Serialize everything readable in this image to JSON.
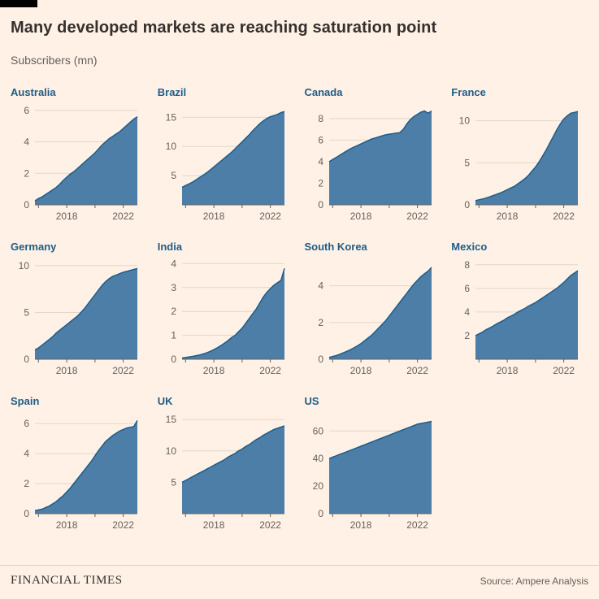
{
  "header": {
    "title": "Many developed markets are reaching saturation point",
    "subtitle": "Subscribers (mn)"
  },
  "footer": {
    "brand": "FINANCIAL TIMES",
    "source": "Source: Ampere Analysis"
  },
  "colors": {
    "background": "#FFF1E5",
    "area_fill": "#4C7EA8",
    "area_line": "#1F5C87",
    "chart_title": "#1F5C87",
    "axis_text": "#66605C",
    "gridline": "#E5D6C6",
    "baseline": "#66605C",
    "heading_text": "#33302E"
  },
  "chart_data": {
    "type": "area",
    "title": "Many developed markets are reaching saturation point",
    "units": "Subscribers (mn)",
    "layout": {
      "columns": 4,
      "rows": 3,
      "grid": "small-multiples",
      "legend": "none",
      "gridlines": "horizontal"
    },
    "x": [
      2015.75,
      2016,
      2016.25,
      2016.5,
      2016.75,
      2017,
      2017.25,
      2017.5,
      2017.75,
      2018,
      2018.25,
      2018.5,
      2018.75,
      2019,
      2019.25,
      2019.5,
      2019.75,
      2020,
      2020.25,
      2020.5,
      2020.75,
      2021,
      2021.25,
      2021.5,
      2021.75,
      2022,
      2022.25,
      2022.5,
      2022.75,
      2023
    ],
    "x_ticks": [
      2016,
      2018,
      2020,
      2022
    ],
    "x_tick_labels": [
      "2018",
      "2022"
    ],
    "x_tick_label_positions": [
      2018,
      2022
    ],
    "charts": [
      {
        "title": "Australia",
        "y_ticks": [
          0,
          2,
          4,
          6
        ],
        "y_max": 6.3,
        "values": [
          0.25,
          0.4,
          0.5,
          0.65,
          0.8,
          0.95,
          1.1,
          1.3,
          1.55,
          1.75,
          1.95,
          2.1,
          2.3,
          2.5,
          2.7,
          2.9,
          3.1,
          3.3,
          3.55,
          3.8,
          4.0,
          4.2,
          4.35,
          4.5,
          4.65,
          4.85,
          5.05,
          5.25,
          5.45,
          5.6
        ]
      },
      {
        "title": "Brazil",
        "y_ticks": [
          5,
          10,
          15
        ],
        "y_max": 17,
        "values": [
          3.0,
          3.3,
          3.6,
          3.9,
          4.3,
          4.7,
          5.1,
          5.5,
          6.0,
          6.5,
          7.0,
          7.5,
          8.0,
          8.5,
          9.0,
          9.6,
          10.2,
          10.8,
          11.4,
          12.0,
          12.7,
          13.3,
          13.9,
          14.4,
          14.8,
          15.1,
          15.3,
          15.5,
          15.8,
          16.0
        ]
      },
      {
        "title": "Canada",
        "y_ticks": [
          0,
          2,
          4,
          6,
          8
        ],
        "y_max": 9.2,
        "values": [
          4.0,
          4.2,
          4.4,
          4.6,
          4.8,
          5.0,
          5.2,
          5.35,
          5.5,
          5.65,
          5.8,
          5.95,
          6.1,
          6.2,
          6.3,
          6.4,
          6.5,
          6.55,
          6.6,
          6.65,
          6.7,
          7.0,
          7.5,
          7.9,
          8.2,
          8.4,
          8.6,
          8.7,
          8.5,
          8.7
        ]
      },
      {
        "title": "France",
        "y_ticks": [
          0,
          5,
          10
        ],
        "y_max": 11.8,
        "values": [
          0.5,
          0.6,
          0.7,
          0.8,
          0.95,
          1.1,
          1.25,
          1.4,
          1.6,
          1.8,
          2.0,
          2.2,
          2.5,
          2.8,
          3.1,
          3.5,
          4.0,
          4.5,
          5.1,
          5.8,
          6.5,
          7.3,
          8.1,
          8.9,
          9.6,
          10.2,
          10.6,
          10.9,
          11.0,
          11.1
        ]
      },
      {
        "title": "Germany",
        "y_ticks": [
          0,
          5,
          10
        ],
        "y_max": 10.6,
        "values": [
          1.0,
          1.2,
          1.5,
          1.8,
          2.1,
          2.4,
          2.8,
          3.1,
          3.4,
          3.7,
          4.0,
          4.3,
          4.6,
          5.0,
          5.4,
          5.9,
          6.4,
          6.9,
          7.4,
          7.9,
          8.3,
          8.6,
          8.85,
          9.0,
          9.15,
          9.3,
          9.4,
          9.5,
          9.6,
          9.7
        ]
      },
      {
        "title": "India",
        "y_ticks": [
          0,
          1,
          2,
          3,
          4
        ],
        "y_max": 4.15,
        "values": [
          0.05,
          0.07,
          0.1,
          0.12,
          0.15,
          0.18,
          0.22,
          0.27,
          0.33,
          0.4,
          0.48,
          0.57,
          0.67,
          0.78,
          0.9,
          1.0,
          1.15,
          1.3,
          1.5,
          1.7,
          1.9,
          2.1,
          2.35,
          2.6,
          2.8,
          2.95,
          3.1,
          3.2,
          3.3,
          3.8
        ]
      },
      {
        "title": "South Korea",
        "y_ticks": [
          0,
          2,
          4
        ],
        "y_max": 5.4,
        "values": [
          0.1,
          0.15,
          0.2,
          0.27,
          0.35,
          0.43,
          0.52,
          0.62,
          0.73,
          0.85,
          1.0,
          1.15,
          1.3,
          1.5,
          1.7,
          1.9,
          2.1,
          2.35,
          2.6,
          2.85,
          3.1,
          3.35,
          3.6,
          3.85,
          4.1,
          4.3,
          4.5,
          4.65,
          4.8,
          5.0
        ]
      },
      {
        "title": "Mexico",
        "y_ticks": [
          2,
          4,
          6,
          8
        ],
        "y_max": 8.4,
        "values": [
          2.0,
          2.15,
          2.3,
          2.5,
          2.65,
          2.8,
          3.0,
          3.15,
          3.3,
          3.5,
          3.65,
          3.8,
          4.0,
          4.15,
          4.3,
          4.5,
          4.65,
          4.8,
          5.0,
          5.2,
          5.4,
          5.6,
          5.8,
          6.0,
          6.25,
          6.5,
          6.8,
          7.1,
          7.3,
          7.5
        ]
      },
      {
        "title": "Spain",
        "y_ticks": [
          0,
          2,
          4,
          6
        ],
        "y_max": 6.6,
        "values": [
          0.2,
          0.25,
          0.3,
          0.4,
          0.5,
          0.65,
          0.8,
          1.0,
          1.2,
          1.45,
          1.7,
          2.0,
          2.3,
          2.6,
          2.9,
          3.2,
          3.5,
          3.85,
          4.2,
          4.5,
          4.8,
          5.0,
          5.2,
          5.35,
          5.5,
          5.6,
          5.7,
          5.75,
          5.8,
          6.2
        ]
      },
      {
        "title": "UK",
        "y_ticks": [
          5,
          10,
          15
        ],
        "y_max": 15.8,
        "values": [
          5.0,
          5.3,
          5.6,
          5.9,
          6.2,
          6.5,
          6.8,
          7.1,
          7.4,
          7.7,
          8.0,
          8.3,
          8.6,
          9.0,
          9.3,
          9.6,
          10.0,
          10.3,
          10.7,
          11.0,
          11.4,
          11.8,
          12.1,
          12.5,
          12.8,
          13.1,
          13.4,
          13.6,
          13.8,
          14.0
        ]
      },
      {
        "title": "US",
        "y_ticks": [
          0,
          20,
          40,
          60
        ],
        "y_max": 72,
        "values": [
          40,
          41,
          42,
          43,
          44,
          45,
          46,
          47,
          48,
          49,
          50,
          51,
          52,
          53,
          54,
          55,
          56,
          57,
          58,
          59,
          60,
          61,
          62,
          63,
          64,
          65,
          65.5,
          66,
          66.5,
          67
        ]
      }
    ]
  }
}
